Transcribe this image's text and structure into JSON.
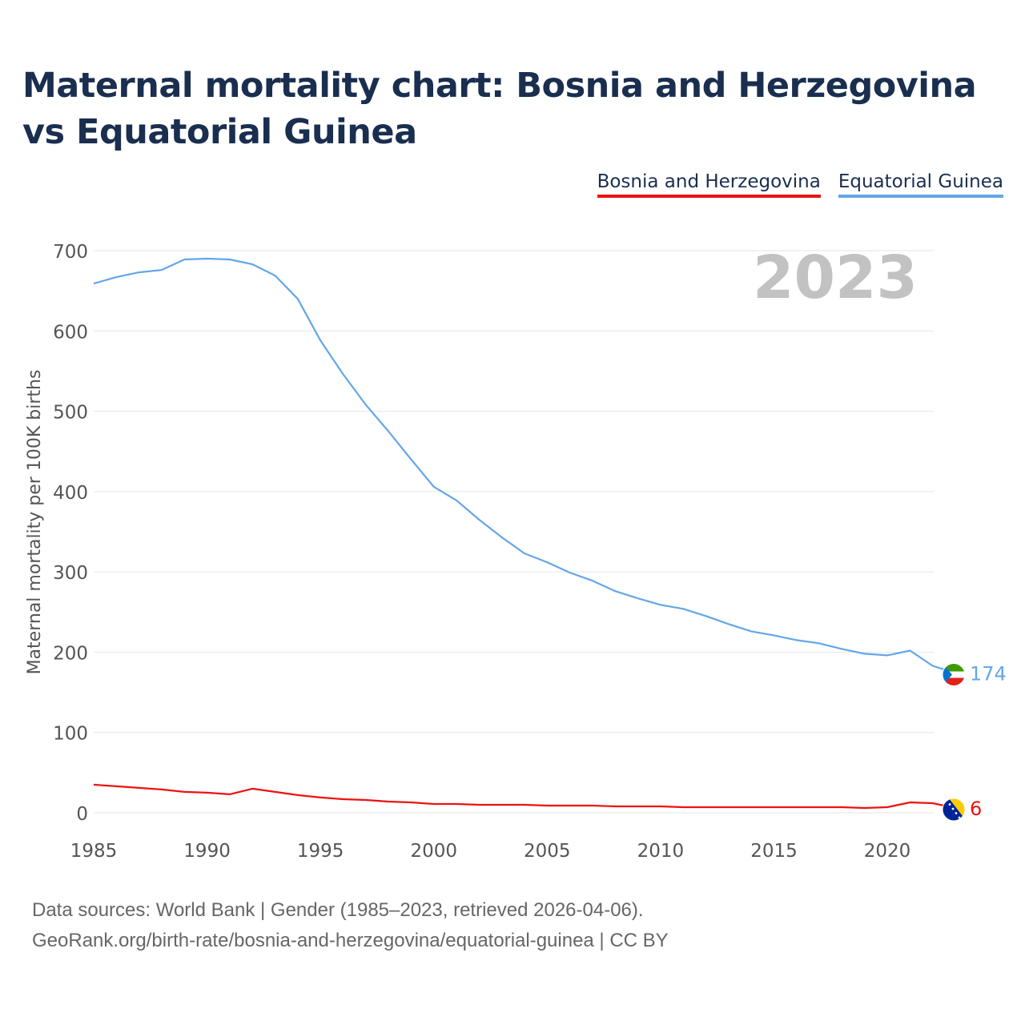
{
  "chart_data": {
    "type": "line",
    "title": "Maternal mortality chart: Bosnia and Herzegovina vs Equatorial Guinea",
    "ylabel": "Maternal mortality per 100K births",
    "xlabel": "",
    "xlim": [
      1985,
      2023
    ],
    "ylim": [
      0,
      700
    ],
    "x_ticks": [
      1985,
      1990,
      1995,
      2000,
      2005,
      2010,
      2015,
      2020
    ],
    "y_ticks": [
      0,
      100,
      200,
      300,
      400,
      500,
      600,
      700
    ],
    "year_watermark": "2023",
    "legend_position": "top-right",
    "x": [
      1985,
      1986,
      1987,
      1988,
      1989,
      1990,
      1991,
      1992,
      1993,
      1994,
      1995,
      1996,
      1997,
      1998,
      1999,
      2000,
      2001,
      2002,
      2003,
      2004,
      2005,
      2006,
      2007,
      2008,
      2009,
      2010,
      2011,
      2012,
      2013,
      2014,
      2015,
      2016,
      2017,
      2018,
      2019,
      2020,
      2021,
      2022,
      2023
    ],
    "series": [
      {
        "name": "Bosnia and Herzegovina",
        "color": "#ee1111",
        "end_label": "6",
        "flag": "bosnia-flag",
        "values": [
          35,
          33,
          31,
          29,
          26,
          25,
          23,
          30,
          26,
          22,
          19,
          17,
          16,
          14,
          13,
          11,
          11,
          10,
          10,
          10,
          9,
          9,
          9,
          8,
          8,
          8,
          7,
          7,
          7,
          7,
          7,
          7,
          7,
          7,
          6,
          7,
          13,
          12,
          6
        ]
      },
      {
        "name": "Equatorial Guinea",
        "color": "#64a6e8",
        "end_label": "174",
        "flag": "equatorial-guinea-flag",
        "values": [
          659,
          667,
          673,
          676,
          689,
          690,
          689,
          683,
          669,
          640,
          588,
          546,
          508,
          475,
          440,
          406,
          389,
          365,
          343,
          323,
          312,
          299,
          289,
          276,
          267,
          259,
          254,
          245,
          235,
          226,
          221,
          215,
          211,
          204,
          198,
          196,
          202,
          183,
          174
        ]
      }
    ]
  },
  "footer": {
    "line1": "Data sources: World Bank | Gender (1985–2023, retrieved 2026-04-06).",
    "line2": "GeoRank.org/birth-rate/bosnia-and-herzegovina/equatorial-guinea | CC BY"
  }
}
